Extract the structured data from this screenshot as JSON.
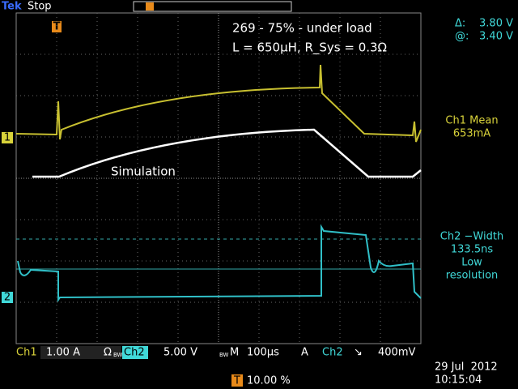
{
  "header": {
    "brand": "Tek",
    "status": "Stop",
    "trigger_marker": "T"
  },
  "annotation": {
    "line1": "269 - 75% - under load",
    "line2": "L = 650µH, R_Sys = 0.3Ω"
  },
  "trace_label": "Simulation",
  "cursors": {
    "delta_label": "Δ:",
    "delta_value": "3.80 V",
    "at_label": "@:",
    "at_value": "3.40 V"
  },
  "measurements": [
    {
      "label": "Ch1 Mean",
      "value": "653mA"
    },
    {
      "label": "Ch2 −Width",
      "value": "133.5ns",
      "note": [
        "Low",
        "resolution"
      ]
    }
  ],
  "channel_markers": [
    "1",
    "2"
  ],
  "status_bar": {
    "ch1": "Ch1",
    "ch1_scale": "1.00 A",
    "ch1_unit": "Ω",
    "bw1": "BW",
    "ch2": "Ch2",
    "ch2_scale": "5.00 V",
    "bw2": "BW",
    "timebase_label": "M",
    "timebase": "100µs",
    "trigger_mode": "A",
    "trigger_source": "Ch2",
    "trigger_slope": "↘",
    "trigger_level": "400mV"
  },
  "footer": {
    "trigger_marker": "T",
    "trigger_position": "10.00 %",
    "date": "29 Jul  2012",
    "time": "10:15:04"
  }
}
